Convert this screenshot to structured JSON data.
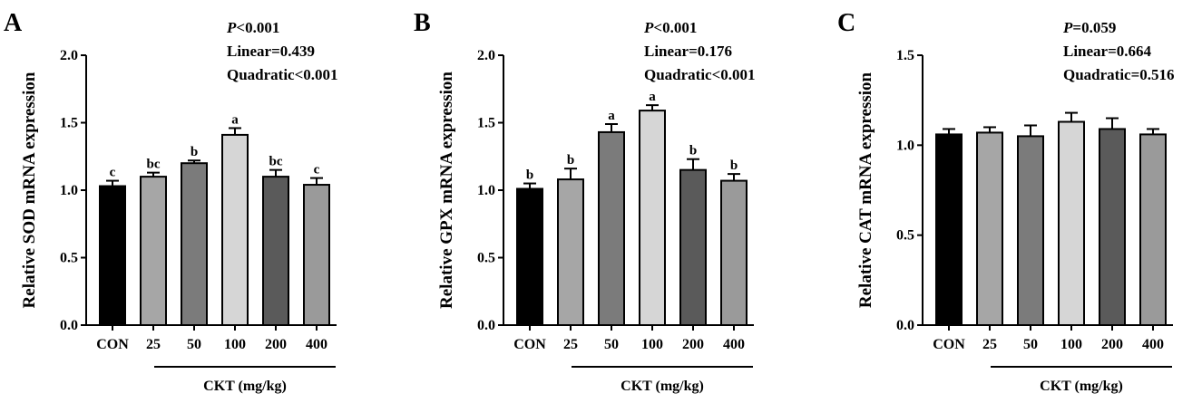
{
  "group_label": "CKT (mg/kg)",
  "categories": [
    "CON",
    "25",
    "50",
    "100",
    "200",
    "400"
  ],
  "bar_colors": [
    "#000000",
    "#a6a6a6",
    "#7b7b7b",
    "#d6d6d6",
    "#5a5a5a",
    "#9a9a9a"
  ],
  "panels": [
    {
      "letter": "A",
      "stats": [
        "<0.001",
        "Linear=0.439",
        "Quadratic<0.001"
      ],
      "stat_prefix": "P"
    },
    {
      "letter": "B",
      "stats": [
        "<0.001",
        "Linear=0.176",
        "Quadratic<0.001"
      ],
      "stat_prefix": "P"
    },
    {
      "letter": "C",
      "stats": [
        "=0.059",
        "Linear=0.664",
        "Quadratic=0.516"
      ],
      "stat_prefix": "P"
    }
  ],
  "chart_data": [
    {
      "type": "bar",
      "ylabel": "Relative SOD mRNA expression",
      "xlabel": "CKT (mg/kg)",
      "categories": [
        "CON",
        "25",
        "50",
        "100",
        "200",
        "400"
      ],
      "values": [
        1.03,
        1.1,
        1.2,
        1.41,
        1.1,
        1.04
      ],
      "errors": [
        0.04,
        0.03,
        0.02,
        0.05,
        0.05,
        0.05
      ],
      "letters": [
        "c",
        "bc",
        "b",
        "a",
        "bc",
        "c"
      ],
      "ylim": [
        0,
        2.0
      ],
      "yticks": [
        "0.0",
        "0.5",
        "1.0",
        "1.5",
        "2.0"
      ]
    },
    {
      "type": "bar",
      "ylabel": "Relative GPX mRNA expression",
      "xlabel": "CKT (mg/kg)",
      "categories": [
        "CON",
        "25",
        "50",
        "100",
        "200",
        "400"
      ],
      "values": [
        1.01,
        1.08,
        1.43,
        1.59,
        1.15,
        1.07
      ],
      "errors": [
        0.04,
        0.08,
        0.06,
        0.04,
        0.08,
        0.05
      ],
      "letters": [
        "b",
        "b",
        "a",
        "a",
        "b",
        "b"
      ],
      "ylim": [
        0,
        2.0
      ],
      "yticks": [
        "0.0",
        "0.5",
        "1.0",
        "1.5",
        "2.0"
      ]
    },
    {
      "type": "bar",
      "ylabel": "Relative CAT mRNA expression",
      "xlabel": "CKT (mg/kg)",
      "categories": [
        "CON",
        "25",
        "50",
        "100",
        "200",
        "400"
      ],
      "values": [
        1.06,
        1.07,
        1.05,
        1.13,
        1.09,
        1.06
      ],
      "errors": [
        0.03,
        0.03,
        0.06,
        0.05,
        0.06,
        0.03
      ],
      "letters": [
        "",
        "",
        "",
        "",
        "",
        ""
      ],
      "ylim": [
        0,
        1.5
      ],
      "yticks": [
        "0.0",
        "0.5",
        "1.0",
        "1.5"
      ]
    }
  ]
}
